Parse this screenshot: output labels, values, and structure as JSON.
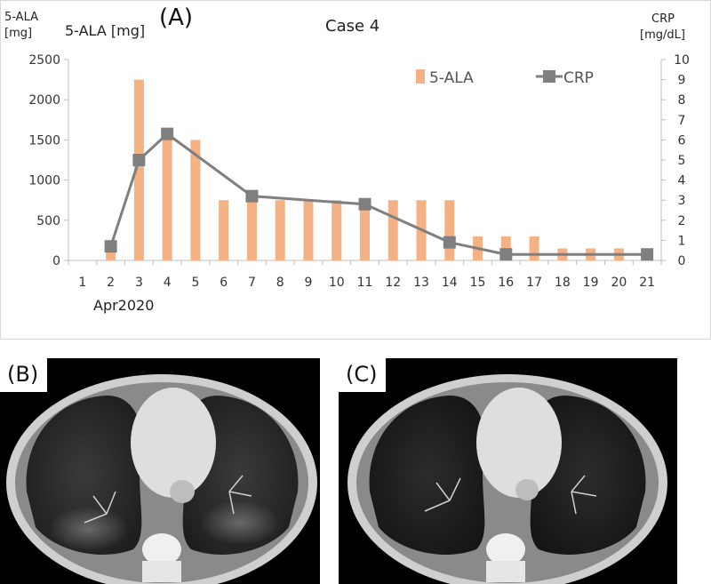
{
  "panel_a": {
    "label": "(A)",
    "title": "Case 4",
    "y_left_title_lines": [
      "5-ALA",
      "[mg]"
    ],
    "y_left_label_inline": "5-ALA [mg]",
    "y_right_title_lines": [
      "CRP",
      "[mg/dL]"
    ],
    "x_sublabel": "Apr2020"
  },
  "panel_b": {
    "label": "(B)"
  },
  "panel_c": {
    "label": "(C)"
  },
  "chart_data": {
    "type": "bar",
    "title": "Case 4",
    "xlabel": "Apr2020",
    "categories": [
      "1",
      "2",
      "3",
      "4",
      "5",
      "6",
      "7",
      "8",
      "9",
      "10",
      "11",
      "12",
      "13",
      "14",
      "15",
      "16",
      "17",
      "18",
      "19",
      "20",
      "21"
    ],
    "ylabel_left": "5-ALA [mg]",
    "ylabel_right": "CRP [mg/dL]",
    "ylim_left": [
      0,
      2500
    ],
    "yticks_left": [
      "0",
      "500",
      "1000",
      "1500",
      "2000",
      "2500"
    ],
    "ylim_right": [
      0,
      10
    ],
    "yticks_right": [
      "0",
      "1",
      "2",
      "3",
      "4",
      "5",
      "6",
      "7",
      "8",
      "9",
      "10"
    ],
    "legend_position": "top-right",
    "grid": false,
    "series": [
      {
        "name": "5-ALA",
        "type": "bar",
        "axis": "left",
        "color": "#f4b183",
        "values": [
          0,
          100,
          2250,
          1600,
          1500,
          750,
          750,
          750,
          750,
          750,
          750,
          750,
          750,
          750,
          300,
          300,
          300,
          150,
          150,
          150,
          0
        ]
      },
      {
        "name": "CRP",
        "type": "line",
        "axis": "right",
        "color": "#7f7f7f",
        "points": [
          [
            2,
            0.7
          ],
          [
            3,
            5.0
          ],
          [
            4,
            6.3
          ],
          [
            7,
            3.2
          ],
          [
            11,
            2.8
          ],
          [
            14,
            0.9
          ],
          [
            16,
            0.3
          ],
          [
            21,
            0.3
          ]
        ]
      }
    ]
  }
}
